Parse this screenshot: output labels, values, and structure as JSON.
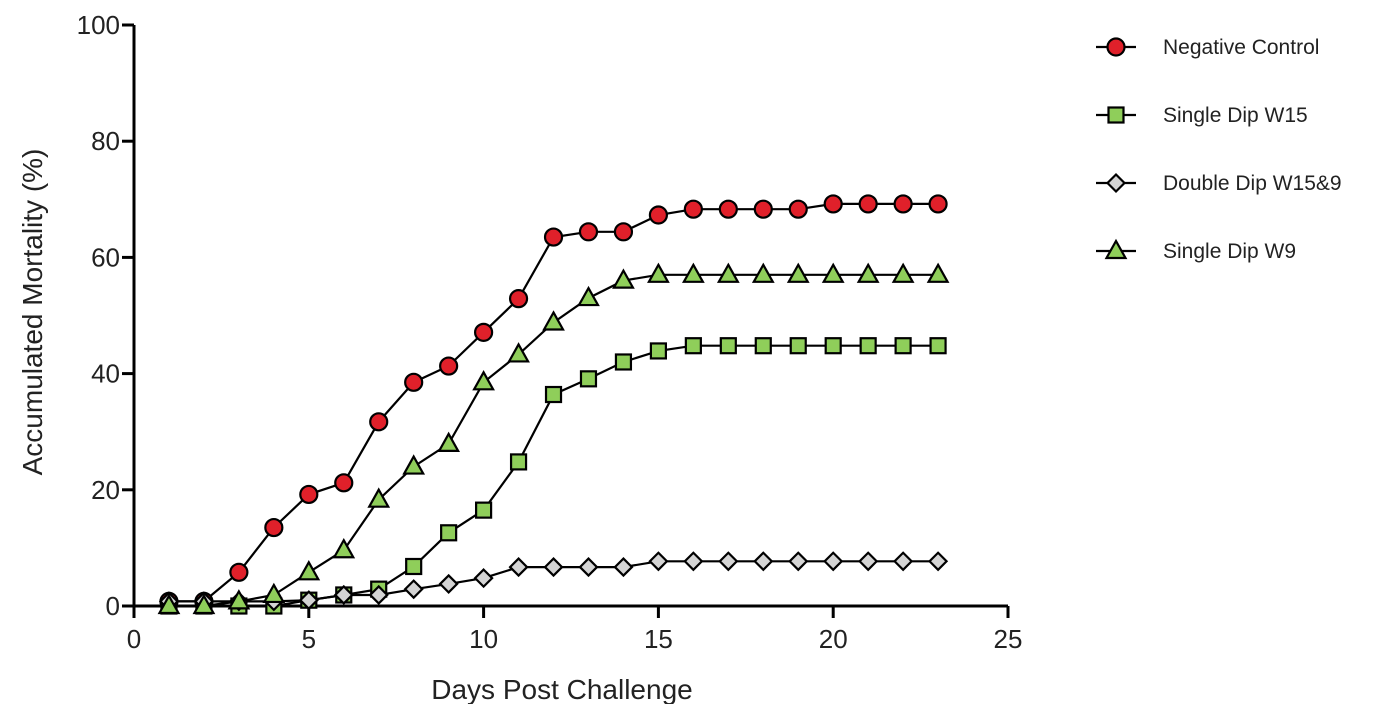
{
  "chart_data": {
    "type": "line",
    "title": "",
    "xlabel": "Days Post Challenge",
    "ylabel": "Accumulated Mortality (%)",
    "xlim": [
      0,
      25
    ],
    "ylim": [
      0,
      100
    ],
    "xticks": [
      0,
      5,
      10,
      15,
      20,
      25
    ],
    "yticks": [
      0,
      20,
      40,
      60,
      80,
      100
    ],
    "xtick_labels": [
      "0",
      "5",
      "10",
      "15",
      "20",
      "25"
    ],
    "ytick_labels": [
      "0",
      "20",
      "40",
      "60",
      "80",
      "100"
    ],
    "grid": false,
    "legend_position": "top-right",
    "x": [
      1,
      2,
      3,
      4,
      5,
      6,
      7,
      8,
      9,
      10,
      11,
      12,
      13,
      14,
      15,
      16,
      17,
      18,
      19,
      20,
      21,
      22,
      23
    ],
    "series": [
      {
        "name": "Negative Control",
        "marker": "circle",
        "color": "#e0202a",
        "values": [
          0.8,
          0.8,
          5.8,
          13.5,
          19.2,
          21.2,
          31.7,
          38.5,
          41.3,
          47.1,
          52.9,
          63.5,
          64.4,
          64.4,
          67.3,
          68.3,
          68.3,
          68.3,
          68.3,
          69.2,
          69.2,
          69.2,
          69.2
        ]
      },
      {
        "name": "Single Dip W15",
        "marker": "square",
        "color": "#8fce5a",
        "values": [
          0,
          0,
          0,
          0,
          1.0,
          1.9,
          2.9,
          6.8,
          12.6,
          16.5,
          24.8,
          36.4,
          39.1,
          42.0,
          43.9,
          44.8,
          44.8,
          44.8,
          44.8,
          44.8,
          44.8,
          44.8,
          44.8
        ]
      },
      {
        "name": "Double Dip W15&9",
        "marker": "diamond",
        "color": "#d4d4d4",
        "values": [
          0.8,
          0.8,
          0.8,
          0.8,
          1.0,
          1.9,
          1.9,
          2.9,
          3.8,
          4.8,
          6.7,
          6.7,
          6.7,
          6.7,
          7.7,
          7.7,
          7.7,
          7.7,
          7.7,
          7.7,
          7.7,
          7.7,
          7.7
        ]
      },
      {
        "name": "Single Dip W9",
        "marker": "triangle",
        "color": "#8fce5a",
        "values": [
          0,
          0,
          0.8,
          1.9,
          5.8,
          9.6,
          18.3,
          24.0,
          27.9,
          38.5,
          43.3,
          48.8,
          53.0,
          56.0,
          57.0,
          57.0,
          57.0,
          57.0,
          57.0,
          57.0,
          57.0,
          57.0,
          57.0
        ]
      }
    ]
  }
}
